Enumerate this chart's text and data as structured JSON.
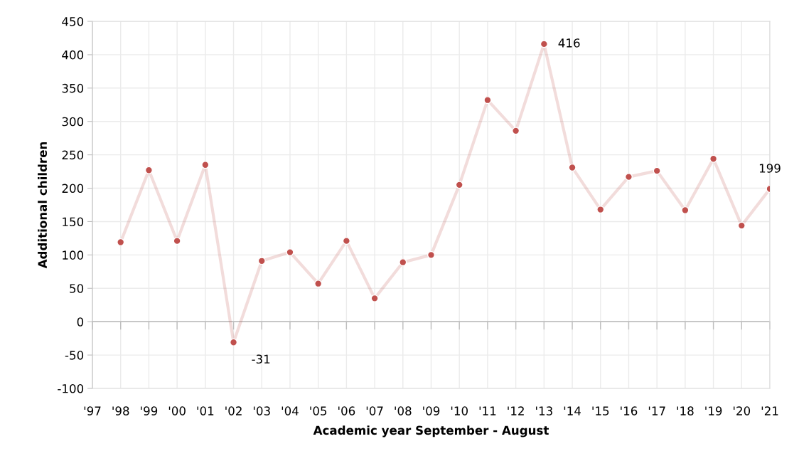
{
  "chart_data": {
    "type": "line",
    "xlabel": "Academic year September - August",
    "ylabel": "Additional children",
    "categories": [
      "'97",
      "'98",
      "'99",
      "'00",
      "'01",
      "'02",
      "'03",
      "'04",
      "'05",
      "'06",
      "'07",
      "'08",
      "'09",
      "'10",
      "'11",
      "'12",
      "'13",
      "'14",
      "'15",
      "'16",
      "'17",
      "'18",
      "'19",
      "'20",
      "'21"
    ],
    "series": [
      {
        "color": "#c0504d",
        "values": [
          null,
          119,
          227,
          121,
          235,
          -31,
          91,
          104,
          57,
          121,
          35,
          89,
          100,
          205,
          332,
          286,
          416,
          231,
          168,
          217,
          226,
          167,
          244,
          144,
          199
        ],
        "value_labels": [
          null,
          null,
          null,
          null,
          null,
          "-31",
          null,
          null,
          null,
          null,
          null,
          null,
          null,
          null,
          null,
          null,
          "416",
          null,
          null,
          null,
          null,
          null,
          null,
          null,
          "199"
        ]
      }
    ],
    "ylim": [
      -100,
      450
    ],
    "yticks": [
      -100,
      -50,
      0,
      50,
      100,
      150,
      200,
      250,
      300,
      350,
      400,
      450
    ],
    "grid": true,
    "marker": "circle",
    "line_style": "solid",
    "legend": false
  }
}
